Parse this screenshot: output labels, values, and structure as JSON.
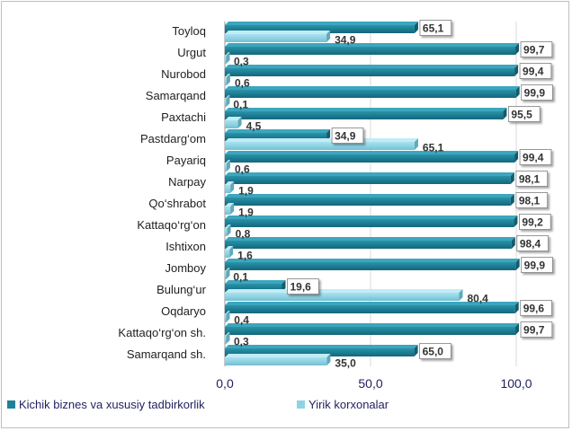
{
  "chart_data": {
    "type": "bar",
    "orientation": "horizontal",
    "categories": [
      "Toyloq",
      "Urgut",
      "Nurobod",
      "Samarqand",
      "Paxtachi",
      "Pastdarg‘om",
      "Payariq",
      "Narpay",
      "Qo‘shrabot",
      "Kattaqo‘rg‘on",
      "Ishtixon",
      "Jomboy",
      "Bulung‘ur",
      "Oqdaryo",
      "Kattaqo‘rg‘on  sh.",
      "Samarqand sh."
    ],
    "series": [
      {
        "name": "Kichik biznes va xususiy tadbirkorlik",
        "color": "#1f8197",
        "values": [
          65.1,
          99.7,
          99.4,
          99.9,
          95.5,
          34.9,
          99.4,
          98.1,
          98.1,
          99.2,
          98.4,
          99.9,
          19.6,
          99.6,
          99.7,
          65.0
        ],
        "labels": [
          "65,1",
          "99,7",
          "99,4",
          "99,9",
          "95,5",
          "34,9",
          "99,4",
          "98,1",
          "98,1",
          "99,2",
          "98,4",
          "99,9",
          "19,6",
          "99,6",
          "99,7",
          "65,0"
        ]
      },
      {
        "name": "Yirik korxonalar",
        "color": "#8fd3e3",
        "values": [
          34.9,
          0.3,
          0.6,
          0.1,
          4.5,
          65.1,
          0.6,
          1.9,
          1.9,
          0.8,
          1.6,
          0.1,
          80.4,
          0.4,
          0.3,
          35.0
        ],
        "labels": [
          "34,9",
          "0,3",
          "0,6",
          "0,1",
          "4,5",
          "65,1",
          "0,6",
          "1,9",
          "1,9",
          "0,8",
          "1,6",
          "0,1",
          "80,4",
          "0,4",
          "0,3",
          "35,0"
        ]
      }
    ],
    "xlim": [
      0,
      100
    ],
    "xticks": [
      0,
      50,
      100
    ],
    "xtick_labels": [
      "0,0",
      "50,0",
      "100,0"
    ],
    "grid": true,
    "legend_position": "bottom-left"
  }
}
